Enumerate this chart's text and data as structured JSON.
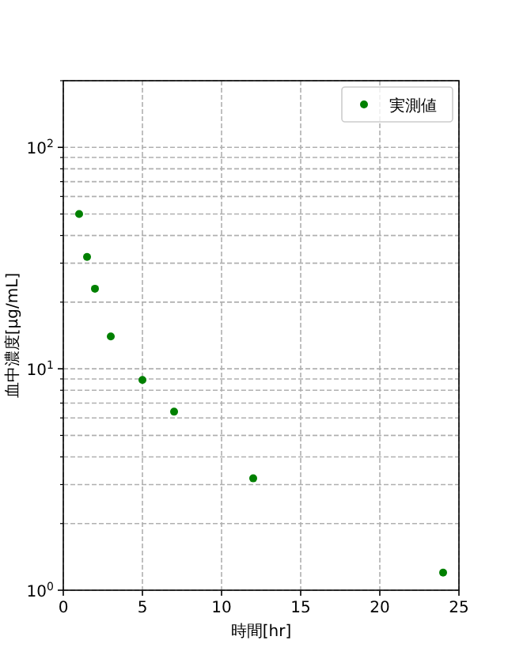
{
  "chart_data": {
    "type": "scatter",
    "xlabel": "時間[hr]",
    "ylabel": "血中濃度[μg/mL]",
    "log": "y",
    "x": [
      1,
      1.5,
      2,
      3,
      5,
      7,
      12,
      24
    ],
    "series": [
      {
        "name": "実測値",
        "color": "#008000",
        "values": [
          50,
          32,
          23,
          14,
          8.9,
          6.4,
          3.2,
          1.2
        ]
      }
    ],
    "xlim": [
      0,
      25
    ],
    "xticks": [
      0,
      5,
      10,
      15,
      20,
      25
    ],
    "ylim": [
      1,
      200
    ],
    "yticks": [
      {
        "value": 1,
        "label": "10$^{0}$"
      },
      {
        "value": 2,
        "label": null
      },
      {
        "value": 3,
        "label": null
      },
      {
        "value": 4,
        "label": null
      },
      {
        "value": 5,
        "label": null
      },
      {
        "value": 6,
        "label": null
      },
      {
        "value": 7,
        "label": null
      },
      {
        "value": 8,
        "label": null
      },
      {
        "value": 9,
        "label": null
      },
      {
        "value": 10,
        "label": "10$^{1}$"
      },
      {
        "value": 20,
        "label": null
      },
      {
        "value": 30,
        "label": null
      },
      {
        "value": 40,
        "label": null
      },
      {
        "value": 50,
        "label": null
      },
      {
        "value": 60,
        "label": null
      },
      {
        "value": 70,
        "label": null
      },
      {
        "value": 80,
        "label": null
      },
      {
        "value": 90,
        "label": null
      },
      {
        "value": 100,
        "label": "10$^{2}$"
      },
      {
        "value": 200,
        "label": null
      }
    ],
    "grid": true,
    "legend": "top right",
    "marker": "circle"
  }
}
